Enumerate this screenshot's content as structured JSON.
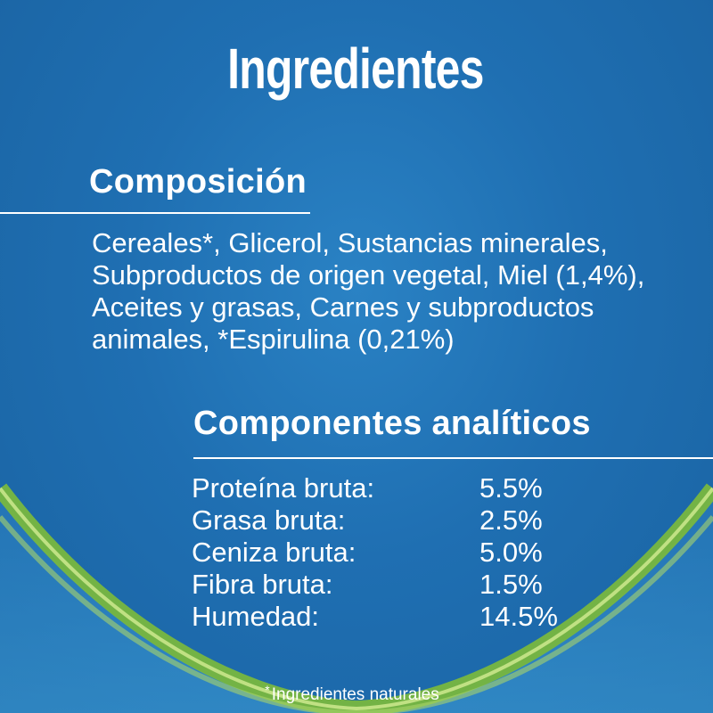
{
  "title": "Ingredientes",
  "composition": {
    "heading": "Composición",
    "lines": [
      "Cereales*, Glicerol, Sustancias minerales,",
      "Subproductos de origen vegetal, Miel (1,4%),",
      "Aceites y grasas, Carnes y subproductos",
      "animales, *Espirulina (0,21%)"
    ]
  },
  "analytical": {
    "heading": "Componentes analíticos",
    "rows": [
      {
        "label": "Proteína bruta:",
        "value": "5.5%"
      },
      {
        "label": "Grasa bruta:",
        "value": "2.5%"
      },
      {
        "label": "Ceniza bruta:",
        "value": "5.0%"
      },
      {
        "label": "Fibra bruta:",
        "value": "1.5%"
      },
      {
        "label": "Humedad:",
        "value": "14.5%"
      }
    ]
  },
  "footnote": {
    "marker": "*",
    "text": "Ingredientes naturales"
  },
  "colors": {
    "background": "#1f6fb2",
    "accent_green": "#8cc63f",
    "text": "#ffffff"
  }
}
